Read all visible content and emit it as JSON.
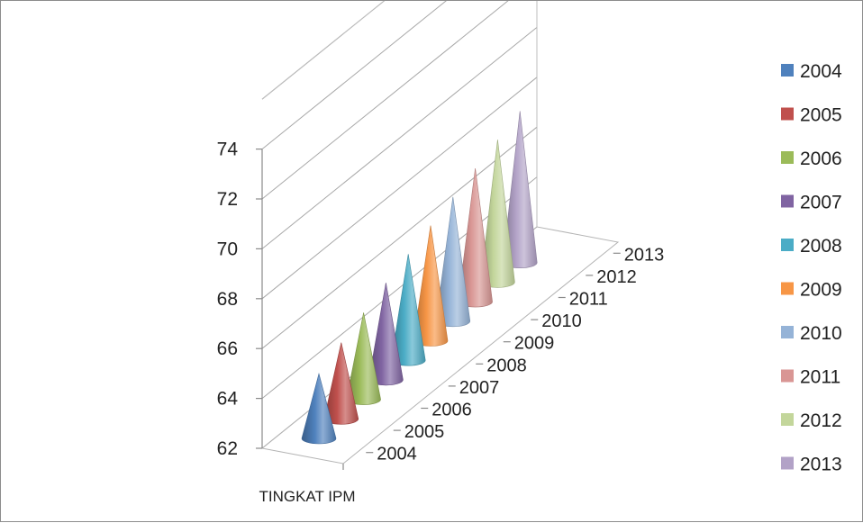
{
  "chart_data": {
    "type": "bar",
    "subtype": "3d-cone",
    "categories": [
      "TINGKAT IPM"
    ],
    "series": [
      {
        "name": "2004",
        "values": [
          64.9
        ],
        "color": "#4F81BD"
      },
      {
        "name": "2005",
        "values": [
          65.8
        ],
        "color": "#C0504D"
      },
      {
        "name": "2006",
        "values": [
          66.6
        ],
        "color": "#9BBB59"
      },
      {
        "name": "2007",
        "values": [
          67.4
        ],
        "color": "#8064A2"
      },
      {
        "name": "2008",
        "values": [
          68.1
        ],
        "color": "#4BACC6"
      },
      {
        "name": "2009",
        "values": [
          68.8
        ],
        "color": "#F79646"
      },
      {
        "name": "2010",
        "values": [
          69.5
        ],
        "color": "#95B3D7"
      },
      {
        "name": "2011",
        "values": [
          70.2
        ],
        "color": "#D99694"
      },
      {
        "name": "2012",
        "values": [
          70.9
        ],
        "color": "#C3D69B"
      },
      {
        "name": "2013",
        "values": [
          71.6
        ],
        "color": "#B2A2C7"
      }
    ],
    "y_ticks": [
      "62",
      "64",
      "66",
      "68",
      "70",
      "72",
      "74"
    ],
    "ylim": [
      62,
      76
    ],
    "depth_labels": [
      "2004",
      "2005",
      "2006",
      "2007",
      "2008",
      "2009",
      "2010",
      "2011",
      "2012",
      "2013"
    ],
    "legend": [
      "2004",
      "2005",
      "2006",
      "2007",
      "2008",
      "2009",
      "2010",
      "2011",
      "2012",
      "2013"
    ],
    "legend_position": "right",
    "grid": true
  }
}
